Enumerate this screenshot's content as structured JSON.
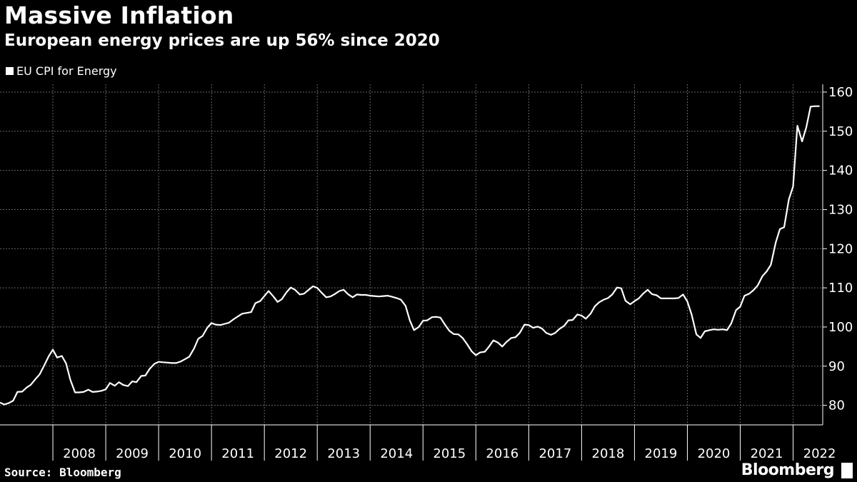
{
  "header": {
    "title": "Massive Inflation",
    "subtitle": "European energy prices are up 56% since 2020"
  },
  "footer": {
    "source": "Source: Bloomberg",
    "brand": "Bloomberg"
  },
  "colors": {
    "background": "#000000",
    "line": "#ffffff",
    "grid": "#666666"
  },
  "chart_data": {
    "type": "line",
    "title": "Massive Inflation",
    "subtitle": "European energy prices are up 56% since 2020",
    "xlabel": "",
    "ylabel": "",
    "legend": [
      "EU CPI for Energy"
    ],
    "legend_position": "top-left",
    "x_range": [
      2007.0,
      2022.56
    ],
    "ylim": [
      75,
      162
    ],
    "yticks": [
      80,
      90,
      100,
      110,
      120,
      130,
      140,
      150,
      160
    ],
    "xtick_labels": [
      "2008",
      "2009",
      "2010",
      "2011",
      "2012",
      "2013",
      "2014",
      "2015",
      "2016",
      "2017",
      "2018",
      "2019",
      "2020",
      "2021",
      "2022"
    ],
    "xtick_positions": [
      2008.5,
      2009.5,
      2010.5,
      2011.5,
      2012.5,
      2013.5,
      2014.5,
      2015.5,
      2016.5,
      2017.5,
      2018.5,
      2019.5,
      2020.5,
      2021.5,
      2022.5
    ],
    "year_boundaries": [
      2008,
      2009,
      2010,
      2011,
      2012,
      2013,
      2014,
      2015,
      2016,
      2017,
      2018,
      2019,
      2020,
      2021,
      2022
    ],
    "grid": true,
    "series": [
      {
        "name": "EU CPI for Energy",
        "x": [
          2007.0,
          2007.08,
          2007.17,
          2007.25,
          2007.33,
          2007.42,
          2007.5,
          2007.58,
          2007.67,
          2007.75,
          2007.83,
          2007.92,
          2008.0,
          2008.08,
          2008.17,
          2008.25,
          2008.33,
          2008.42,
          2008.5,
          2008.58,
          2008.67,
          2008.75,
          2008.83,
          2008.92,
          2009.0,
          2009.08,
          2009.17,
          2009.25,
          2009.33,
          2009.42,
          2009.5,
          2009.58,
          2009.67,
          2009.75,
          2009.83,
          2009.92,
          2010.0,
          2010.08,
          2010.17,
          2010.25,
          2010.33,
          2010.42,
          2010.5,
          2010.58,
          2010.67,
          2010.75,
          2010.83,
          2010.92,
          2011.0,
          2011.08,
          2011.17,
          2011.25,
          2011.33,
          2011.42,
          2011.5,
          2011.58,
          2011.67,
          2011.75,
          2011.83,
          2011.92,
          2012.0,
          2012.08,
          2012.17,
          2012.25,
          2012.33,
          2012.42,
          2012.5,
          2012.58,
          2012.67,
          2012.75,
          2012.83,
          2012.92,
          2013.0,
          2013.08,
          2013.17,
          2013.25,
          2013.33,
          2013.42,
          2013.5,
          2013.58,
          2013.67,
          2013.75,
          2013.83,
          2013.92,
          2014.0,
          2014.08,
          2014.17,
          2014.25,
          2014.33,
          2014.42,
          2014.5,
          2014.58,
          2014.67,
          2014.75,
          2014.83,
          2014.92,
          2015.0,
          2015.08,
          2015.17,
          2015.25,
          2015.33,
          2015.42,
          2015.5,
          2015.58,
          2015.67,
          2015.75,
          2015.83,
          2015.92,
          2016.0,
          2016.08,
          2016.17,
          2016.25,
          2016.33,
          2016.42,
          2016.5,
          2016.58,
          2016.67,
          2016.75,
          2016.83,
          2016.92,
          2017.0,
          2017.08,
          2017.17,
          2017.25,
          2017.33,
          2017.42,
          2017.5,
          2017.58,
          2017.67,
          2017.75,
          2017.83,
          2017.92,
          2018.0,
          2018.08,
          2018.17,
          2018.25,
          2018.33,
          2018.42,
          2018.5,
          2018.58,
          2018.67,
          2018.75,
          2018.83,
          2018.92,
          2019.0,
          2019.08,
          2019.17,
          2019.25,
          2019.33,
          2019.42,
          2019.5,
          2019.58,
          2019.67,
          2019.75,
          2019.83,
          2019.92,
          2020.0,
          2020.08,
          2020.17,
          2020.25,
          2020.33,
          2020.42,
          2020.5,
          2020.58,
          2020.67,
          2020.75,
          2020.83,
          2020.92,
          2021.0,
          2021.08,
          2021.17,
          2021.25,
          2021.33,
          2021.42,
          2021.5,
          2021.58,
          2021.67,
          2021.75,
          2021.83,
          2021.92,
          2022.0,
          2022.08,
          2022.17,
          2022.25,
          2022.33,
          2022.42,
          2022.5
        ],
        "values": [
          80.7,
          80.2,
          80.6,
          81.2,
          83.4,
          83.5,
          84.5,
          85.2,
          86.7,
          87.9,
          90.0,
          92.5,
          94.2,
          92.2,
          92.6,
          90.7,
          86.5,
          83.3,
          83.3,
          83.4,
          84.0,
          83.4,
          83.5,
          83.7,
          84.1,
          85.7,
          85.0,
          85.9,
          85.2,
          84.9,
          86.1,
          85.9,
          87.5,
          87.6,
          89.3,
          90.6,
          91.1,
          91.0,
          90.9,
          90.8,
          90.8,
          91.2,
          91.8,
          92.4,
          94.5,
          97.0,
          97.7,
          99.8,
          101.0,
          100.6,
          100.5,
          100.8,
          101.1,
          102.0,
          102.7,
          103.4,
          103.6,
          103.8,
          106.1,
          106.6,
          107.9,
          109.2,
          107.8,
          106.4,
          107.1,
          108.9,
          110.1,
          109.5,
          108.3,
          108.5,
          109.4,
          110.4,
          110.0,
          108.8,
          107.6,
          107.8,
          108.4,
          109.2,
          109.5,
          108.4,
          107.6,
          108.3,
          108.2,
          108.2,
          108.0,
          107.9,
          107.8,
          107.9,
          108.0,
          107.7,
          107.4,
          107.0,
          105.4,
          101.7,
          99.2,
          100.0,
          101.6,
          101.7,
          102.5,
          102.6,
          102.4,
          100.5,
          99.0,
          98.2,
          98.1,
          97.2,
          95.7,
          93.8,
          92.8,
          93.5,
          93.7,
          95.0,
          96.6,
          96.0,
          95.0,
          96.2,
          97.2,
          97.4,
          98.5,
          100.6,
          100.5,
          99.8,
          100.1,
          99.6,
          98.5,
          98.0,
          98.5,
          99.5,
          100.3,
          101.7,
          101.8,
          103.2,
          102.9,
          102.1,
          103.4,
          105.3,
          106.3,
          107.0,
          107.4,
          108.3,
          110.1,
          109.9,
          106.7,
          105.8,
          106.6,
          107.3,
          108.6,
          109.5,
          108.4,
          108.1,
          107.3,
          107.3,
          107.3,
          107.3,
          107.4,
          108.3,
          106.5,
          103.2,
          98.1,
          97.2,
          98.9,
          99.2,
          99.4,
          99.3,
          99.4,
          99.2,
          100.9,
          104.3,
          105.2,
          108.0,
          108.5,
          109.4,
          110.6,
          113.0,
          114.2,
          115.9,
          121.5,
          125.0,
          125.5,
          132.6,
          135.9,
          151.4,
          147.4,
          151.0,
          156.3,
          156.4,
          156.4
        ]
      }
    ]
  }
}
